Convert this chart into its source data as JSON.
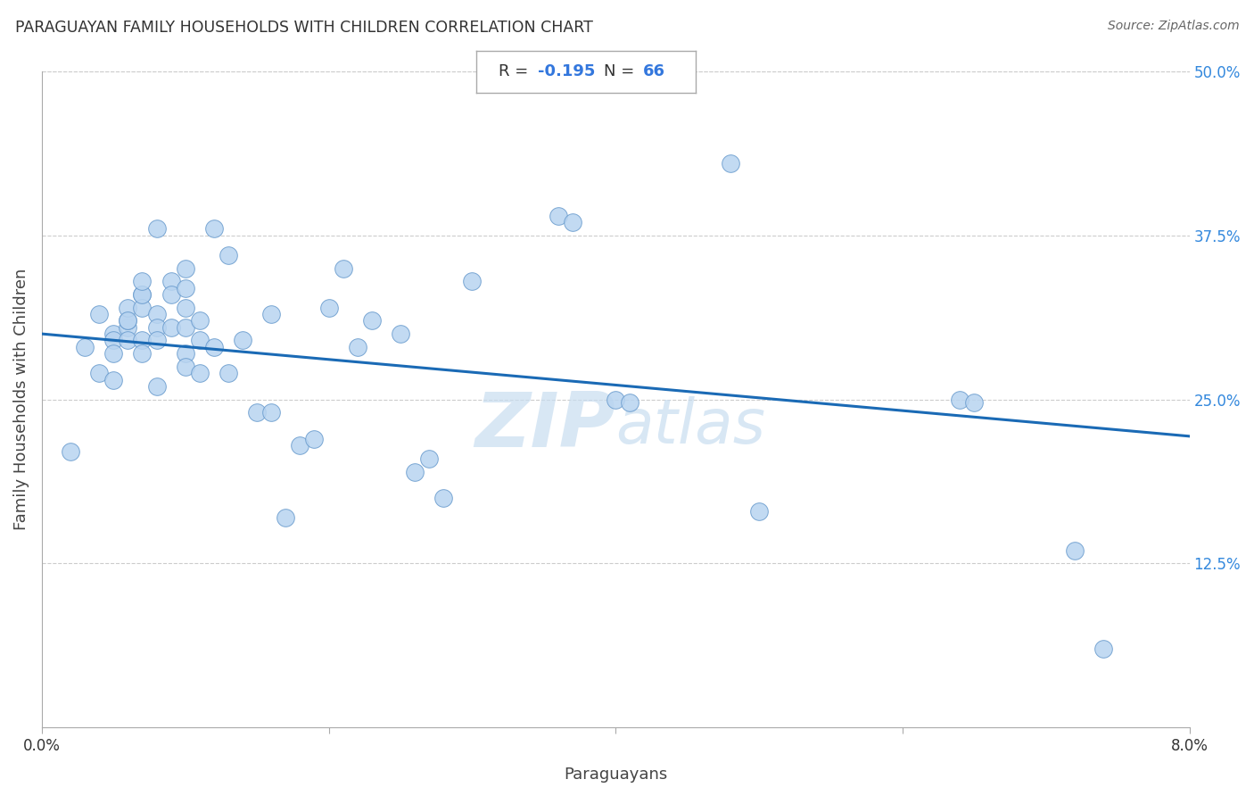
{
  "title": "PARAGUAYAN FAMILY HOUSEHOLDS WITH CHILDREN CORRELATION CHART",
  "source": "Source: ZipAtlas.com",
  "xlabel": "Paraguayans",
  "ylabel": "Family Households with Children",
  "R": -0.195,
  "N": 66,
  "xlim": [
    0.0,
    0.08
  ],
  "ylim": [
    0.0,
    0.5
  ],
  "xticks": [
    0.0,
    0.02,
    0.04,
    0.06,
    0.08
  ],
  "xtick_labels": [
    "0.0%",
    "",
    "",
    "",
    "8.0%"
  ],
  "ytick_labels_right": [
    "50.0%",
    "37.5%",
    "25.0%",
    "12.5%"
  ],
  "ytick_vals_right": [
    0.5,
    0.375,
    0.25,
    0.125
  ],
  "scatter_color": "#b8d4f0",
  "scatter_edge_color": "#6699cc",
  "line_color": "#1a6ab5",
  "watermark_color": "#c8ddf0",
  "scatter_x": [
    0.002,
    0.003,
    0.004,
    0.004,
    0.005,
    0.005,
    0.005,
    0.005,
    0.006,
    0.006,
    0.006,
    0.006,
    0.006,
    0.007,
    0.007,
    0.007,
    0.007,
    0.007,
    0.007,
    0.008,
    0.008,
    0.008,
    0.008,
    0.008,
    0.009,
    0.009,
    0.009,
    0.01,
    0.01,
    0.01,
    0.01,
    0.01,
    0.01,
    0.011,
    0.011,
    0.011,
    0.012,
    0.012,
    0.013,
    0.013,
    0.014,
    0.015,
    0.016,
    0.016,
    0.017,
    0.018,
    0.019,
    0.02,
    0.021,
    0.022,
    0.023,
    0.025,
    0.026,
    0.027,
    0.028,
    0.03,
    0.036,
    0.037,
    0.04,
    0.041,
    0.048,
    0.05,
    0.064,
    0.065,
    0.072,
    0.074
  ],
  "scatter_y": [
    0.21,
    0.29,
    0.315,
    0.27,
    0.3,
    0.295,
    0.285,
    0.265,
    0.305,
    0.31,
    0.32,
    0.31,
    0.295,
    0.33,
    0.32,
    0.295,
    0.285,
    0.33,
    0.34,
    0.315,
    0.305,
    0.295,
    0.26,
    0.38,
    0.34,
    0.33,
    0.305,
    0.35,
    0.335,
    0.32,
    0.305,
    0.285,
    0.275,
    0.31,
    0.295,
    0.27,
    0.38,
    0.29,
    0.36,
    0.27,
    0.295,
    0.24,
    0.315,
    0.24,
    0.16,
    0.215,
    0.22,
    0.32,
    0.35,
    0.29,
    0.31,
    0.3,
    0.195,
    0.205,
    0.175,
    0.34,
    0.39,
    0.385,
    0.25,
    0.248,
    0.43,
    0.165,
    0.25,
    0.248,
    0.135,
    0.06
  ],
  "trendline_x": [
    0.0,
    0.08
  ],
  "trendline_y": [
    0.3,
    0.222
  ]
}
